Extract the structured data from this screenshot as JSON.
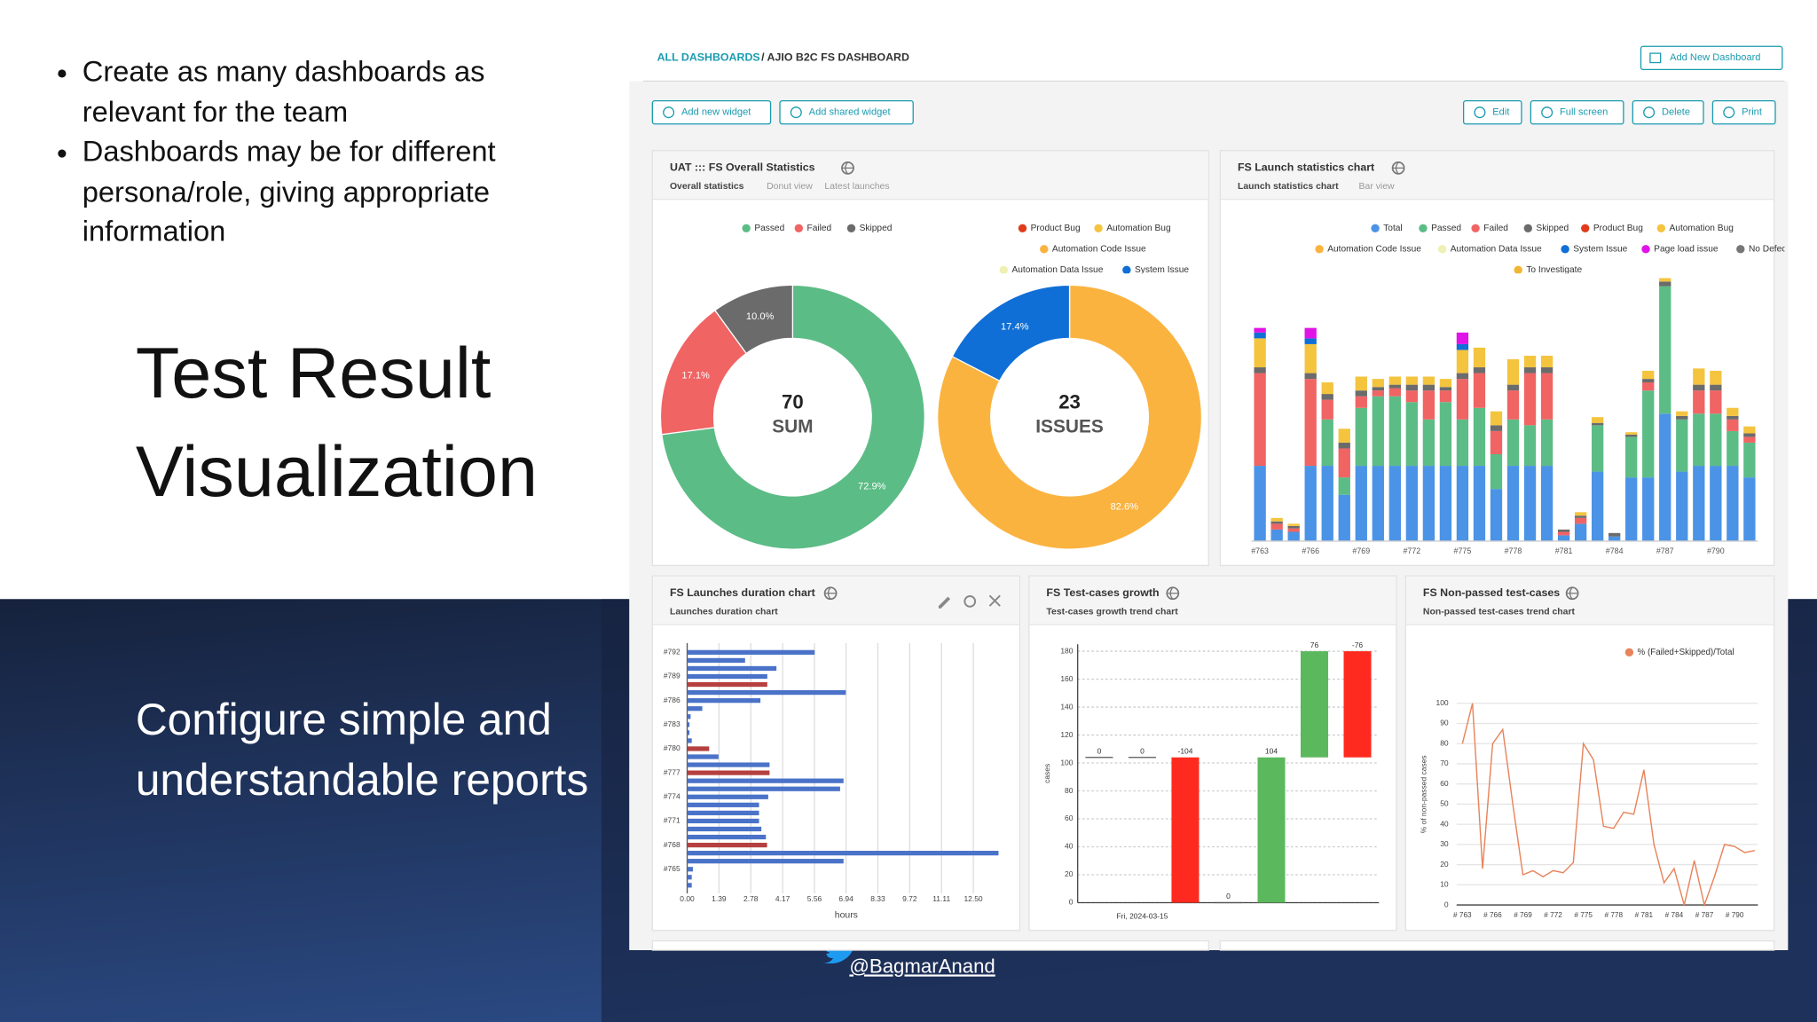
{
  "slide": {
    "bullets": [
      "Create as many dashboards as relevant for the team",
      "Dashboards may be for different persona/role, giving appropriate information"
    ],
    "title": "Test Result Visualization",
    "subtitle": "Configure simple and understandable reports",
    "handle": "@BagmarAnand"
  },
  "dashboard": {
    "breadcrumb_root": "ALL DASHBOARDS",
    "breadcrumb_current": "/ AJIO B2C FS DASHBOARD",
    "add_dashboard": "Add New Dashboard",
    "widget_buttons": [
      "Add new widget",
      "Add shared widget"
    ],
    "actions": [
      "Edit",
      "Full screen",
      "Delete",
      "Print"
    ],
    "widgets": [
      {
        "title": "UAT ::: FS Overall Statistics",
        "tabs": [
          "Overall statistics",
          "Donut view",
          "Latest launches"
        ]
      },
      {
        "title": "FS Launch statistics chart",
        "tabs": [
          "Launch statistics chart",
          "Bar view"
        ]
      },
      {
        "title": "FS Launches duration chart",
        "tabs": [
          "Launches duration chart"
        ]
      },
      {
        "title": "FS Test-cases growth",
        "tabs": [
          "Test-cases growth trend chart"
        ]
      },
      {
        "title": "FS Non-passed test-cases",
        "tabs": [
          "Non-passed test-cases trend chart"
        ]
      }
    ]
  },
  "chart_data": [
    {
      "type": "donut",
      "categories": [
        "Passed",
        "Failed",
        "Skipped"
      ],
      "values": [
        72.9,
        17.1,
        10.0
      ],
      "value_labels": [
        "72.9%",
        "17.1%",
        "10.0%"
      ],
      "colors": [
        "#5cbc86",
        "#f06464",
        "#6b6b6b"
      ],
      "center_value": 70,
      "center_label": "SUM"
    },
    {
      "type": "donut",
      "categories": [
        "Product Bug",
        "Automation Bug",
        "Automation Code Issue",
        "Automation Data Issue",
        "System Issue"
      ],
      "values": [
        0,
        0,
        82.6,
        0,
        17.4
      ],
      "value_labels": [
        null,
        null,
        "82.6%",
        null,
        "17.4%"
      ],
      "colors": [
        "#e03c1c",
        "#f4c43f",
        "#fbb33f",
        "#eef0b4",
        "#0f6fd6"
      ],
      "center_value": 23,
      "center_label": "ISSUES"
    },
    {
      "type": "stacked_bar",
      "categories": [
        "#763",
        null,
        null,
        "#766",
        null,
        null,
        "#769",
        null,
        null,
        "#772",
        null,
        null,
        "#775",
        null,
        null,
        "#778",
        null,
        null,
        "#781",
        null,
        null,
        "#784",
        null,
        null,
        "#787",
        null,
        null,
        "#790",
        null,
        null
      ],
      "ylim": [
        0,
        240
      ],
      "series": [
        {
          "name": "Total",
          "color": "#4b93e6",
          "values": [
            65,
            10,
            8,
            65,
            65,
            40,
            65,
            65,
            65,
            65,
            65,
            65,
            65,
            65,
            45,
            65,
            65,
            65,
            5,
            15,
            60,
            4,
            55,
            55,
            110,
            60,
            65,
            65,
            65,
            55
          ]
        },
        {
          "name": "Passed",
          "color": "#5cbc86",
          "values": [
            0,
            0,
            0,
            0,
            40,
            15,
            50,
            60,
            60,
            55,
            40,
            55,
            40,
            50,
            30,
            40,
            35,
            40,
            0,
            0,
            40,
            0,
            35,
            75,
            110,
            45,
            45,
            45,
            30,
            30
          ]
        },
        {
          "name": "Failed",
          "color": "#f06464",
          "values": [
            80,
            5,
            3,
            75,
            17,
            25,
            10,
            5,
            7,
            10,
            25,
            10,
            35,
            30,
            20,
            25,
            45,
            40,
            3,
            5,
            0,
            0,
            0,
            7,
            0,
            0,
            20,
            20,
            10,
            5
          ]
        },
        {
          "name": "Skipped",
          "color": "#6b6b6b",
          "values": [
            5,
            2,
            2,
            5,
            5,
            5,
            5,
            3,
            3,
            5,
            5,
            3,
            5,
            5,
            5,
            5,
            5,
            5,
            2,
            2,
            2,
            3,
            2,
            3,
            4,
            3,
            5,
            5,
            3,
            3
          ]
        },
        {
          "name": "Product Bug",
          "color": "#e03c1c",
          "values": [
            0,
            0,
            0,
            0,
            0,
            0,
            0,
            0,
            0,
            0,
            0,
            0,
            0,
            0,
            0,
            0,
            0,
            0,
            0,
            0,
            0,
            0,
            0,
            0,
            0,
            0,
            0,
            0,
            0,
            0
          ]
        },
        {
          "name": "Automation Bug",
          "color": "#f4c43f",
          "values": [
            25,
            3,
            2,
            25,
            10,
            12,
            12,
            7,
            7,
            7,
            7,
            7,
            20,
            17,
            12,
            22,
            10,
            10,
            0,
            3,
            5,
            0,
            2,
            7,
            3,
            4,
            14,
            12,
            7,
            6
          ]
        },
        {
          "name": "Automation Code Issue",
          "color": "#fbb33f",
          "values": [
            0,
            0,
            0,
            0,
            0,
            0,
            0,
            0,
            0,
            0,
            0,
            0,
            0,
            0,
            0,
            0,
            0,
            0,
            0,
            0,
            0,
            0,
            0,
            0,
            0,
            0,
            0,
            0,
            0,
            0
          ]
        },
        {
          "name": "Automation Data Issue",
          "color": "#eef0b4",
          "values": [
            0,
            0,
            0,
            0,
            0,
            0,
            0,
            0,
            0,
            0,
            0,
            0,
            0,
            0,
            0,
            0,
            0,
            0,
            0,
            0,
            0,
            0,
            0,
            0,
            0,
            0,
            0,
            0,
            0,
            0
          ]
        },
        {
          "name": "System Issue",
          "color": "#0f6fd6",
          "values": [
            5,
            0,
            0,
            5,
            0,
            0,
            0,
            0,
            0,
            0,
            0,
            0,
            5,
            0,
            0,
            0,
            0,
            0,
            0,
            0,
            0,
            0,
            0,
            0,
            0,
            0,
            0,
            0,
            0,
            0
          ]
        },
        {
          "name": "Page load issue",
          "color": "#e014e6",
          "values": [
            4,
            0,
            0,
            9,
            0,
            0,
            0,
            0,
            0,
            0,
            0,
            0,
            10,
            0,
            0,
            0,
            0,
            0,
            0,
            0,
            0,
            0,
            0,
            0,
            0,
            0,
            0,
            0,
            0,
            0
          ]
        },
        {
          "name": "No Defect",
          "color": "#777777",
          "values": [
            0,
            0,
            0,
            0,
            0,
            0,
            0,
            0,
            0,
            0,
            0,
            0,
            0,
            0,
            0,
            0,
            0,
            0,
            0,
            0,
            0,
            0,
            0,
            0,
            0,
            0,
            0,
            0,
            0,
            0
          ]
        },
        {
          "name": "To Investigate",
          "color": "#f2b531",
          "values": [
            0,
            0,
            0,
            0,
            0,
            0,
            0,
            0,
            0,
            0,
            0,
            0,
            0,
            0,
            0,
            0,
            0,
            0,
            0,
            0,
            0,
            0,
            0,
            0,
            0,
            0,
            0,
            0,
            0,
            0
          ]
        }
      ]
    },
    {
      "type": "hbar",
      "categories": [
        "#792",
        null,
        null,
        "#789",
        null,
        null,
        "#786",
        null,
        null,
        "#783",
        null,
        null,
        "#780",
        null,
        null,
        "#777",
        null,
        null,
        "#774",
        null,
        null,
        "#771",
        null,
        null,
        "#768",
        null,
        null,
        "#765",
        null,
        null
      ],
      "values": [
        5.57,
        2.53,
        3.9,
        3.5,
        3.5,
        6.93,
        3.2,
        0.66,
        0.15,
        0.1,
        0.1,
        0.2,
        0.96,
        1.37,
        3.6,
        3.6,
        6.83,
        6.68,
        3.54,
        3.14,
        3.14,
        3.14,
        3.24,
        3.44,
        3.49,
        13.6,
        6.83,
        0.25,
        0.2,
        0.2
      ],
      "colors": [
        "#4a72c8",
        "#4a72c8",
        "#4a72c8",
        "#4a72c8",
        "#b5403f",
        "#4a72c8",
        "#4a72c8",
        "#4a72c8",
        "#4a72c8",
        "#4a72c8",
        "#4a72c8",
        "#4a72c8",
        "#b5403f",
        "#4a72c8",
        "#4a72c8",
        "#b5403f",
        "#4a72c8",
        "#4a72c8",
        "#4a72c8",
        "#4a72c8",
        "#4a72c8",
        "#4a72c8",
        "#4a72c8",
        "#4a72c8",
        "#b5403f",
        "#4a72c8",
        "#4a72c8",
        "#4a72c8",
        "#4a72c8",
        "#4a72c8"
      ],
      "xlim": [
        0,
        13.9
      ],
      "xticks": [
        {
          "value": 0,
          "label": "0.00"
        },
        1.39,
        2.78,
        4.17,
        5.56,
        6.94,
        8.33,
        9.72,
        11.11,
        {
          "value": 12.5,
          "label": "12.50"
        }
      ],
      "xlabel": "hours",
      "grid": true
    },
    {
      "type": "waterfall",
      "categories": [
        null,
        "Fri, 2024-03-15",
        null,
        null,
        null,
        null,
        null
      ],
      "initial": 104,
      "values": [
        0,
        0,
        -104,
        0,
        104,
        76,
        -76
      ],
      "increase_color": "#5cb85c",
      "decrease_color": "#ff2a1f",
      "ylim": [
        0,
        185
      ],
      "yticks": [
        0,
        20,
        40,
        60,
        80,
        100,
        120,
        140,
        160,
        180
      ],
      "ylabel": "cases",
      "grid": true
    },
    {
      "type": "line",
      "categories": [
        "# 763",
        null,
        null,
        "# 766",
        null,
        null,
        "# 769",
        null,
        null,
        "# 772",
        null,
        null,
        "# 775",
        null,
        null,
        "# 778",
        null,
        null,
        "# 781",
        null,
        null,
        "# 784",
        null,
        null,
        "# 787",
        null,
        null,
        "# 790",
        null,
        null
      ],
      "series": [
        {
          "name": "% (Failed+Skipped)/Total",
          "color": "#e8845c",
          "values": [
            80,
            100,
            18,
            80,
            87,
            50,
            15,
            17,
            14,
            17,
            16,
            21,
            80,
            72,
            39,
            38,
            46,
            45,
            67,
            30,
            11,
            18,
            0,
            22,
            0,
            14,
            30,
            29,
            26,
            27
          ]
        }
      ],
      "ylim": [
        0,
        104
      ],
      "yticks": [
        0,
        10,
        20,
        30,
        40,
        50,
        60,
        70,
        80,
        90,
        100
      ],
      "ylabel": "% of non-passed cases",
      "grid": true
    }
  ]
}
